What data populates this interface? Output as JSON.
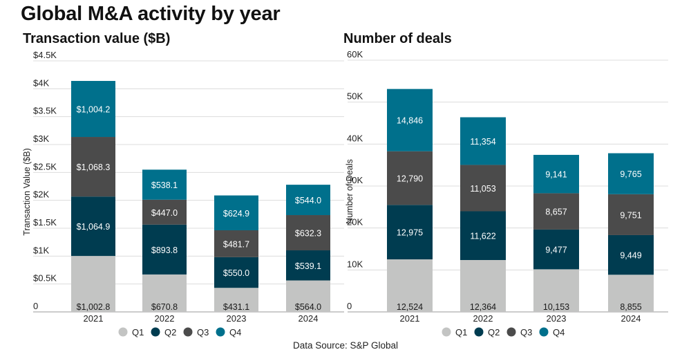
{
  "title": "Global M&A activity by year",
  "source": "Data Source: S&P Global",
  "colors": {
    "Q1": "#c3c4c3",
    "Q2": "#003c50",
    "Q3": "#4b4b4b",
    "Q4": "#00708c",
    "grid": "#dcdcdc"
  },
  "chart_data": [
    {
      "type": "bar",
      "stacked": true,
      "title": "Transaction value ($B)",
      "xlabel": "",
      "ylabel": "Transaction Value ($B)",
      "categories": [
        "2021",
        "2022",
        "2023",
        "2024"
      ],
      "ylim": [
        0,
        4500
      ],
      "yticks": [
        0,
        500,
        1000,
        1500,
        2000,
        2500,
        3000,
        3500,
        4000,
        4500
      ],
      "ytick_labels": [
        "0",
        "$0.5K",
        "$1K",
        "$1.5K",
        "$2K",
        "$2.5K",
        "$3K",
        "$3.5K",
        "$4K",
        "$4.5K"
      ],
      "series": [
        {
          "name": "Q1",
          "values": [
            1002.8,
            670.8,
            431.1,
            564.0
          ],
          "labels": [
            "$1,002.8",
            "$670.8",
            "$431.1",
            "$564.0"
          ]
        },
        {
          "name": "Q2",
          "values": [
            1064.9,
            893.8,
            550.0,
            539.1
          ],
          "labels": [
            "$1,064.9",
            "$893.8",
            "$550.0",
            "$539.1"
          ]
        },
        {
          "name": "Q3",
          "values": [
            1068.3,
            447.0,
            481.7,
            632.3
          ],
          "labels": [
            "$1,068.3",
            "$447.0",
            "$481.7",
            "$632.3"
          ]
        },
        {
          "name": "Q4",
          "values": [
            1004.2,
            538.1,
            624.9,
            544.0
          ],
          "labels": [
            "$1,004.2",
            "$538.1",
            "$624.9",
            "$544.0"
          ]
        }
      ],
      "legend": [
        "Q1",
        "Q2",
        "Q3",
        "Q4"
      ],
      "legend_position": "bottom",
      "grid": true
    },
    {
      "type": "bar",
      "stacked": true,
      "title": "Number of deals",
      "xlabel": "",
      "ylabel": "Number of Deals",
      "categories": [
        "2021",
        "2022",
        "2023",
        "2024"
      ],
      "ylim": [
        0,
        60000
      ],
      "yticks": [
        0,
        10000,
        20000,
        30000,
        40000,
        50000,
        60000
      ],
      "ytick_labels": [
        "0",
        "10K",
        "20K",
        "30K",
        "40K",
        "50K",
        "60K"
      ],
      "series": [
        {
          "name": "Q1",
          "values": [
            12524,
            12364,
            10153,
            8855
          ],
          "labels": [
            "12,524",
            "12,364",
            "10,153",
            "8,855"
          ]
        },
        {
          "name": "Q2",
          "values": [
            12975,
            11622,
            9477,
            9449
          ],
          "labels": [
            "12,975",
            "11,622",
            "9,477",
            "9,449"
          ]
        },
        {
          "name": "Q3",
          "values": [
            12790,
            11053,
            8657,
            9751
          ],
          "labels": [
            "12,790",
            "11,053",
            "8,657",
            "9,751"
          ]
        },
        {
          "name": "Q4",
          "values": [
            14846,
            11354,
            9141,
            9765
          ],
          "labels": [
            "14,846",
            "11,354",
            "9,141",
            "9,765"
          ]
        }
      ],
      "legend": [
        "Q1",
        "Q2",
        "Q3",
        "Q4"
      ],
      "legend_position": "bottom",
      "grid": true
    }
  ]
}
